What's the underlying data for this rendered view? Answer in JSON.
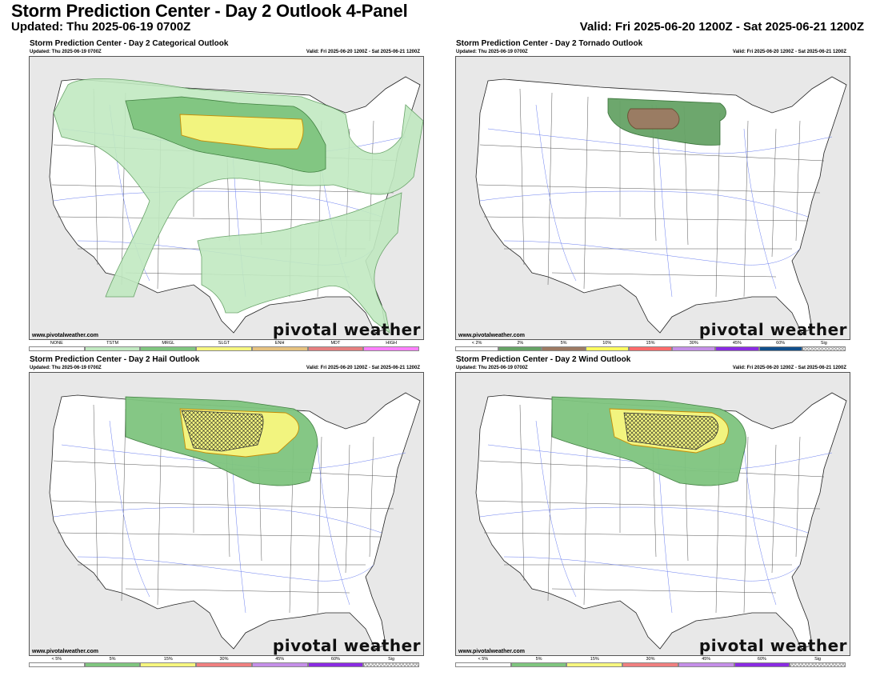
{
  "header": {
    "title": "Storm Prediction Center - Day 2 Outlook 4-Panel",
    "updated": "Updated: Thu 2025-06-19 0700Z",
    "valid": "Valid: Fri 2025-06-20 1200Z - Sat 2025-06-21 1200Z"
  },
  "panels": [
    {
      "title": "Storm Prediction Center - Day 2 Categorical Outlook",
      "updated": "Updated: Thu 2025-06-19 0700Z",
      "valid": "Valid: Fri 2025-06-20 1200Z - Sat 2025-06-21 1200Z",
      "credit": "www.pivotalweather.com",
      "logo": "pivotal weather",
      "legend": [
        {
          "label": "NONE",
          "color": "#ffffff"
        },
        {
          "label": "TSTM",
          "color": "#c1e9c1"
        },
        {
          "label": "MRGL",
          "color": "#7fc57f"
        },
        {
          "label": "SLGT",
          "color": "#f6f67f"
        },
        {
          "label": "ENH",
          "color": "#e6c27f"
        },
        {
          "label": "MDT",
          "color": "#e67f7f"
        },
        {
          "label": "HIGH",
          "color": "#ff7fff"
        }
      ]
    },
    {
      "title": "Storm Prediction Center - Day 2 Tornado Outlook",
      "updated": "Updated: Thu 2025-06-19 0700Z",
      "valid": "Valid: Fri 2025-06-20 1200Z - Sat 2025-06-21 1200Z",
      "credit": "www.pivotalweather.com",
      "logo": "pivotal weather",
      "legend": [
        {
          "label": "< 2%",
          "color": "#ffffff"
        },
        {
          "label": "2%",
          "color": "#66a366"
        },
        {
          "label": "5%",
          "color": "#9d7a63"
        },
        {
          "label": "10%",
          "color": "#fffe60"
        },
        {
          "label": "15%",
          "color": "#ff6b6b"
        },
        {
          "label": "30%",
          "color": "#c48fe8"
        },
        {
          "label": "45%",
          "color": "#8a2be2"
        },
        {
          "label": "60%",
          "color": "#104e8b"
        },
        {
          "label": "Sig",
          "color": "hatch"
        }
      ]
    },
    {
      "title": "Storm Prediction Center - Day 2 Hail Outlook",
      "updated": "Updated: Thu 2025-06-19 0700Z",
      "valid": "Valid: Fri 2025-06-20 1200Z - Sat 2025-06-21 1200Z",
      "credit": "www.pivotalweather.com",
      "logo": "pivotal weather",
      "legend": [
        {
          "label": "< 5%",
          "color": "#ffffff"
        },
        {
          "label": "5%",
          "color": "#7fc57f"
        },
        {
          "label": "15%",
          "color": "#f6f67f"
        },
        {
          "label": "30%",
          "color": "#ef7f7f"
        },
        {
          "label": "45%",
          "color": "#c48fe8"
        },
        {
          "label": "60%",
          "color": "#8a2be2"
        },
        {
          "label": "Sig",
          "color": "hatch"
        }
      ]
    },
    {
      "title": "Storm Prediction Center - Day 2 Wind Outlook",
      "updated": "Updated: Thu 2025-06-19 0700Z",
      "valid": "Valid: Fri 2025-06-20 1200Z - Sat 2025-06-21 1200Z",
      "credit": "www.pivotalweather.com",
      "logo": "pivotal weather",
      "legend": [
        {
          "label": "< 5%",
          "color": "#ffffff"
        },
        {
          "label": "5%",
          "color": "#7fc57f"
        },
        {
          "label": "15%",
          "color": "#f6f67f"
        },
        {
          "label": "30%",
          "color": "#ef7f7f"
        },
        {
          "label": "45%",
          "color": "#c48fe8"
        },
        {
          "label": "60%",
          "color": "#8a2be2"
        },
        {
          "label": "Sig",
          "color": "hatch"
        }
      ]
    }
  ]
}
